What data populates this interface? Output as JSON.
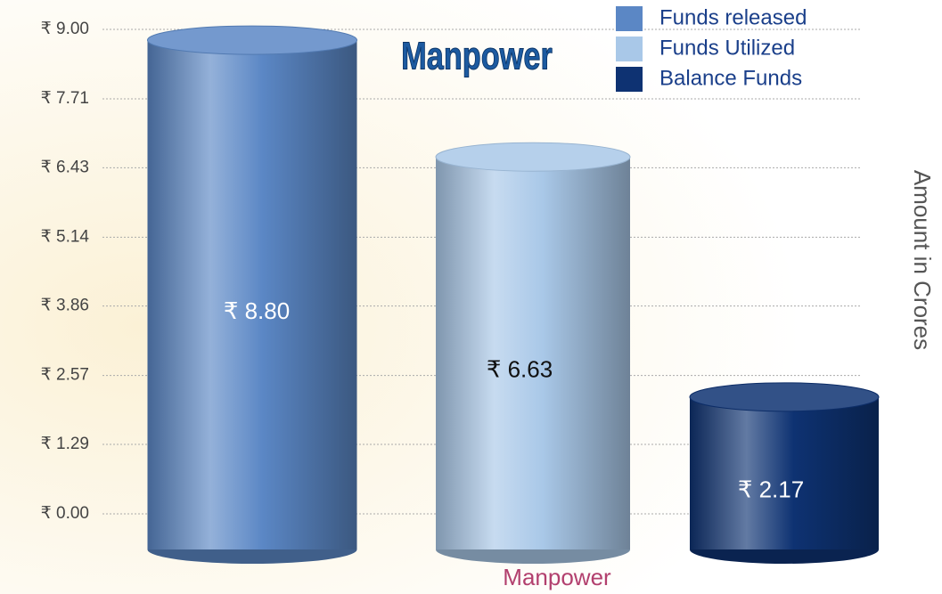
{
  "chart_data": {
    "type": "bar",
    "title": "Manpower",
    "categories": [
      "Manpower"
    ],
    "series": [
      {
        "name": "Funds released",
        "color": "#5b87c5",
        "values": [
          8.8
        ],
        "value_labels": [
          "₹ 8.80"
        ]
      },
      {
        "name": "Funds Utilized",
        "color": "#a9c8e8",
        "values": [
          6.63
        ],
        "value_labels": [
          "₹ 6.63"
        ]
      },
      {
        "name": "Balance Funds",
        "color": "#0e3272",
        "values": [
          2.17
        ],
        "value_labels": [
          "₹ 2.17"
        ]
      }
    ],
    "y_label": "Amount in Crores",
    "ylim": [
      0,
      9
    ],
    "yticks": [
      {
        "value": 0,
        "label": "₹ 0.00"
      },
      {
        "value": 1.29,
        "label": "₹ 1.29"
      },
      {
        "value": 2.57,
        "label": "₹ 2.57"
      },
      {
        "value": 3.86,
        "label": "₹ 3.86"
      },
      {
        "value": 5.14,
        "label": "₹ 5.14"
      },
      {
        "value": 6.43,
        "label": "₹ 6.43"
      },
      {
        "value": 7.71,
        "label": "₹ 7.71"
      },
      {
        "value": 9,
        "label": "₹ 9.00"
      }
    ],
    "grid": true,
    "legend": "top-right"
  }
}
